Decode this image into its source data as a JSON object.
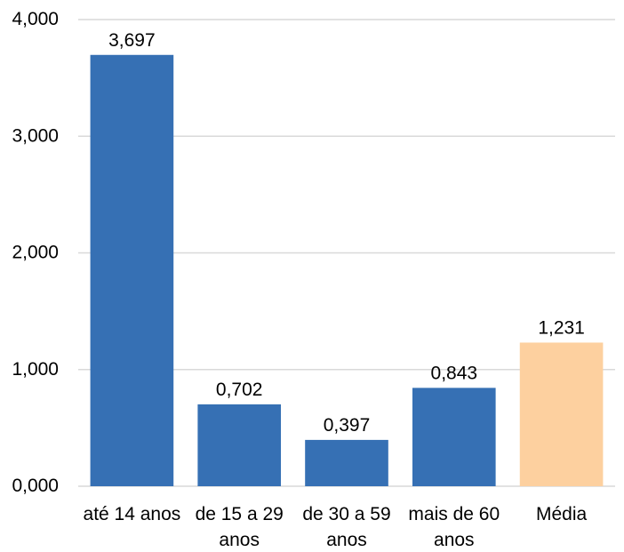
{
  "chart_data": {
    "type": "bar",
    "title": "",
    "xlabel": "",
    "ylabel": "",
    "categories": [
      [
        "até 14 anos"
      ],
      [
        "de 15 a 29",
        "anos"
      ],
      [
        "de 30 a 59",
        "anos"
      ],
      [
        "mais de 60",
        "anos"
      ],
      [
        "Média"
      ]
    ],
    "values": [
      3.697,
      0.702,
      0.397,
      0.843,
      1.231
    ],
    "value_labels": [
      "3,697",
      "0,702",
      "0,397",
      "0,843",
      "1,231"
    ],
    "bar_colors": [
      "#3670b4",
      "#3670b4",
      "#3670b4",
      "#3670b4",
      "#fdd09f"
    ],
    "gridline_color": "#d9d9d9",
    "ylim": [
      0,
      4
    ],
    "yticks": [
      0,
      1,
      2,
      3,
      4
    ],
    "ytick_labels": [
      "0,000",
      "1,000",
      "2,000",
      "3,000",
      "4,000"
    ],
    "grid": true,
    "legend": "none"
  }
}
